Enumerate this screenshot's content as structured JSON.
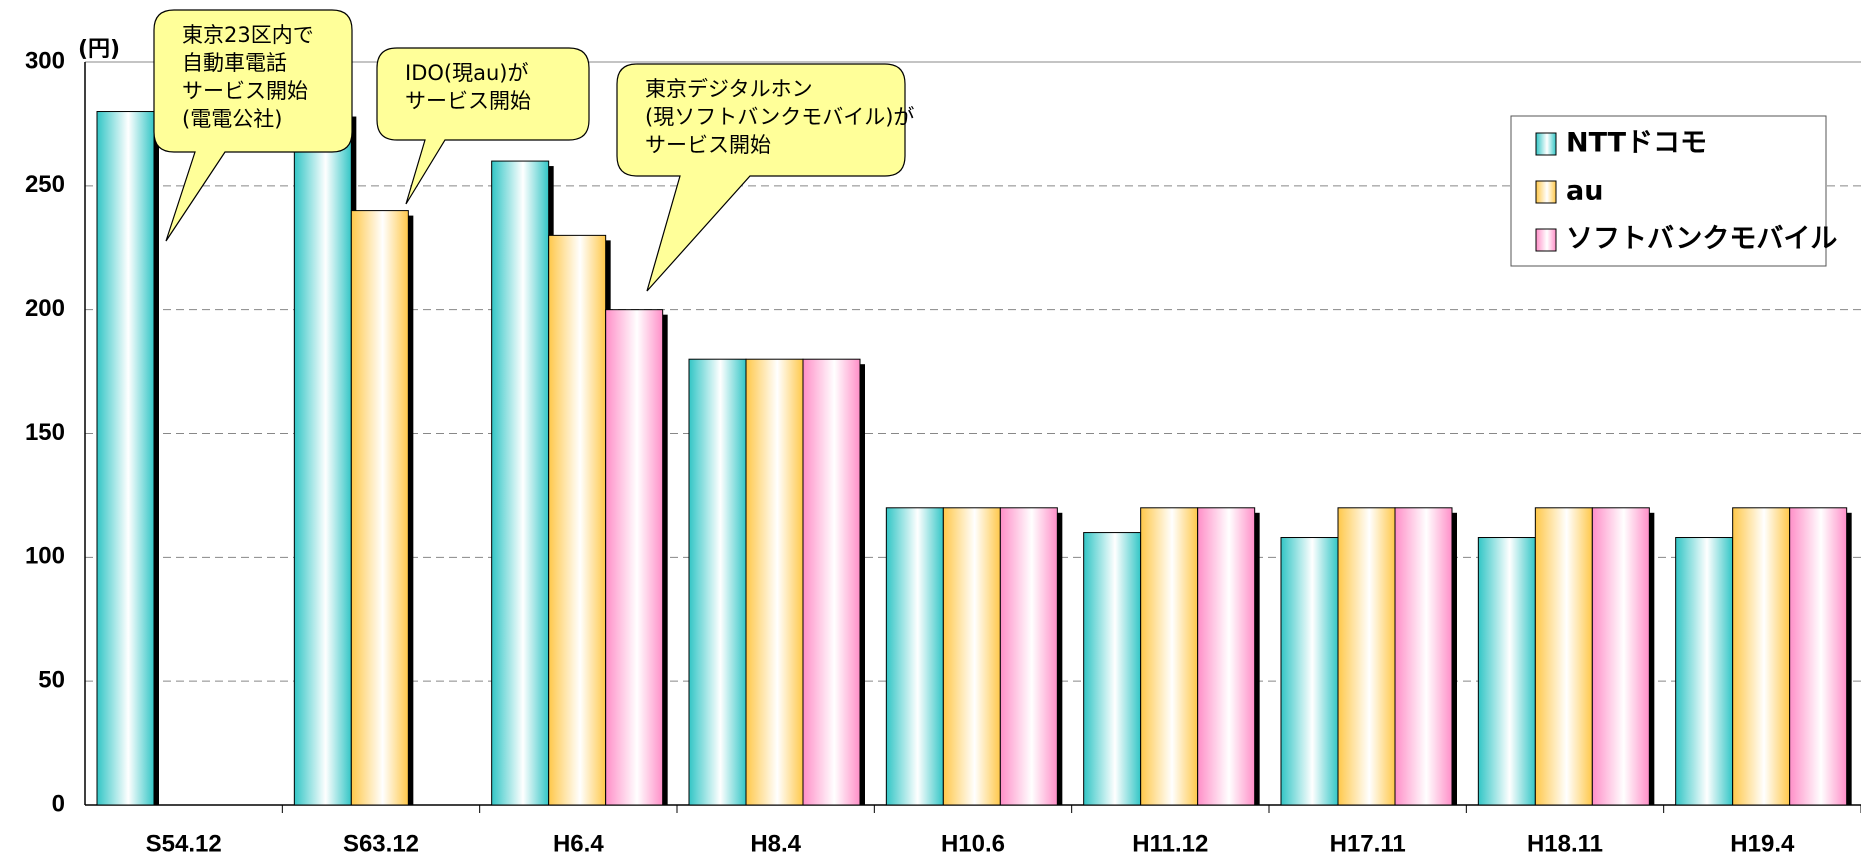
{
  "chart_data": {
    "type": "bar",
    "unit_label": "(円)",
    "categories": [
      "S54.12",
      "S63.12",
      "H6.4",
      "H8.4",
      "H10.6",
      "H11.12",
      "H17.11",
      "H18.11",
      "H19.4"
    ],
    "series": [
      {
        "name": "NTTドコモ",
        "color": "#33c6c6",
        "values": [
          280,
          280,
          260,
          180,
          120,
          110,
          108,
          108,
          108
        ]
      },
      {
        "name": "au",
        "color": "#ffc84a",
        "values": [
          null,
          240,
          230,
          180,
          120,
          120,
          120,
          120,
          120
        ]
      },
      {
        "name": "ソフトバンクモバイル",
        "color": "#ff8fc8",
        "values": [
          null,
          null,
          200,
          180,
          120,
          120,
          120,
          120,
          120
        ]
      }
    ],
    "annotations": [
      [
        "東京23区内で",
        "自動車電話",
        "サービス開始",
        "(電電公社)"
      ],
      [
        "IDO(現au)が",
        "サービス開始"
      ],
      [
        "東京デジタルホン",
        "(現ソフトバンクモバイル)が",
        "サービス開始"
      ]
    ],
    "ylim": [
      0,
      300
    ],
    "yticks": [
      0,
      50,
      100,
      150,
      200,
      250,
      300
    ],
    "grid": true,
    "legend": "top-right"
  }
}
